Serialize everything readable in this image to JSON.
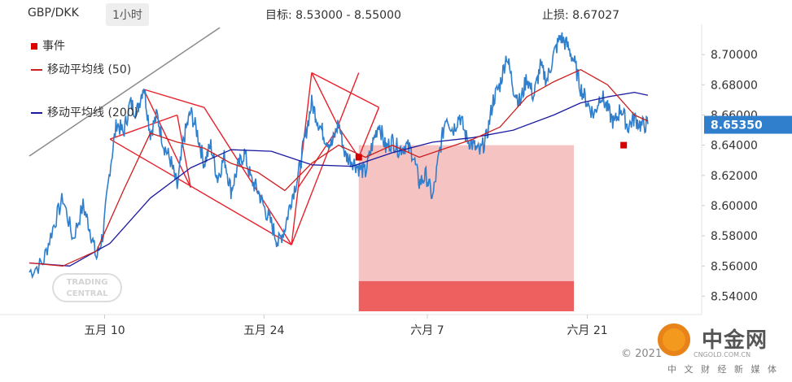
{
  "header": {
    "pair": "GBP/DKK",
    "timeframe": "1小时",
    "target": "目标:  8.53000 - 8.55000",
    "stop": "止损:  8.67027"
  },
  "legend": {
    "event": "事件",
    "ma50": "移动平均线 (50)",
    "ma200": "移动平均线 (200)"
  },
  "colors": {
    "price": "#2f7fcc",
    "ma50": "#cc1f1f",
    "ma200": "#1a1aa0",
    "event": "#d40000",
    "pattern": "#e8202a",
    "target_light": "#f6c3c3",
    "target_dark": "#ee6060",
    "current_tag": "#2f7fcc"
  },
  "watermark": {
    "copyright": "© 2021",
    "brand": "中金网",
    "subtitle": "中 文 财 经 新 媒 体",
    "url": "CNGOLD.COM.CN",
    "tc_line1": "TRADING",
    "tc_line2": "CENTRAL"
  },
  "chart_data": {
    "type": "line",
    "title": "GBP/DKK",
    "timeframe": "1小时",
    "ylim": [
      8.53,
      8.72
    ],
    "y_ticks": [
      "8.54000",
      "8.56000",
      "8.58000",
      "8.60000",
      "8.62000",
      "8.64000",
      "8.66000",
      "8.68000",
      "8.70000"
    ],
    "x_ticks": [
      "五月 10",
      "五月 24",
      "六月 7",
      "六月 21"
    ],
    "current_price": "8.65350",
    "target_zone": [
      8.53,
      8.55
    ],
    "stop_loss": 8.67027,
    "series": [
      {
        "name": "price",
        "points": [
          [
            0,
            8.556
          ],
          [
            0.02,
            8.562
          ],
          [
            0.035,
            8.585
          ],
          [
            0.05,
            8.605
          ],
          [
            0.065,
            8.578
          ],
          [
            0.08,
            8.6
          ],
          [
            0.09,
            8.585
          ],
          [
            0.1,
            8.565
          ],
          [
            0.11,
            8.582
          ],
          [
            0.12,
            8.625
          ],
          [
            0.13,
            8.655
          ],
          [
            0.14,
            8.648
          ],
          [
            0.15,
            8.668
          ],
          [
            0.16,
            8.662
          ],
          [
            0.17,
            8.68
          ],
          [
            0.18,
            8.648
          ],
          [
            0.19,
            8.66
          ],
          [
            0.2,
            8.64
          ],
          [
            0.21,
            8.63
          ],
          [
            0.22,
            8.612
          ],
          [
            0.23,
            8.645
          ],
          [
            0.24,
            8.662
          ],
          [
            0.25,
            8.648
          ],
          [
            0.26,
            8.628
          ],
          [
            0.27,
            8.64
          ],
          [
            0.28,
            8.618
          ],
          [
            0.29,
            8.632
          ],
          [
            0.3,
            8.61
          ],
          [
            0.31,
            8.625
          ],
          [
            0.32,
            8.635
          ],
          [
            0.33,
            8.617
          ],
          [
            0.34,
            8.61
          ],
          [
            0.35,
            8.598
          ],
          [
            0.36,
            8.588
          ],
          [
            0.37,
            8.575
          ],
          [
            0.38,
            8.585
          ],
          [
            0.39,
            8.605
          ],
          [
            0.4,
            8.62
          ],
          [
            0.41,
            8.645
          ],
          [
            0.42,
            8.668
          ],
          [
            0.43,
            8.655
          ],
          [
            0.44,
            8.645
          ],
          [
            0.45,
            8.64
          ],
          [
            0.46,
            8.655
          ],
          [
            0.47,
            8.633
          ],
          [
            0.48,
            8.63
          ],
          [
            0.49,
            8.625
          ],
          [
            0.5,
            8.622
          ],
          [
            0.51,
            8.64
          ],
          [
            0.52,
            8.655
          ],
          [
            0.53,
            8.638
          ],
          [
            0.54,
            8.643
          ],
          [
            0.55,
            8.637
          ],
          [
            0.56,
            8.64
          ],
          [
            0.57,
            8.635
          ],
          [
            0.58,
            8.615
          ],
          [
            0.59,
            8.62
          ],
          [
            0.6,
            8.605
          ],
          [
            0.61,
            8.635
          ],
          [
            0.62,
            8.66
          ],
          [
            0.63,
            8.65
          ],
          [
            0.64,
            8.66
          ],
          [
            0.65,
            8.645
          ],
          [
            0.66,
            8.64
          ],
          [
            0.67,
            8.635
          ],
          [
            0.68,
            8.645
          ],
          [
            0.69,
            8.67
          ],
          [
            0.7,
            8.68
          ],
          [
            0.71,
            8.7
          ],
          [
            0.72,
            8.678
          ],
          [
            0.73,
            8.668
          ],
          [
            0.74,
            8.685
          ],
          [
            0.75,
            8.672
          ],
          [
            0.76,
            8.692
          ],
          [
            0.77,
            8.683
          ],
          [
            0.78,
            8.7
          ],
          [
            0.79,
            8.712
          ],
          [
            0.8,
            8.706
          ],
          [
            0.81,
            8.696
          ],
          [
            0.82,
            8.678
          ],
          [
            0.83,
            8.668
          ],
          [
            0.84,
            8.66
          ],
          [
            0.85,
            8.674
          ],
          [
            0.86,
            8.664
          ],
          [
            0.87,
            8.654
          ],
          [
            0.88,
            8.665
          ],
          [
            0.89,
            8.652
          ],
          [
            0.9,
            8.658
          ],
          [
            0.91,
            8.653
          ],
          [
            0.92,
            8.654
          ]
        ]
      },
      {
        "name": "移动平均线 (50)",
        "points": [
          [
            0,
            8.562
          ],
          [
            0.05,
            8.56
          ],
          [
            0.1,
            8.57
          ],
          [
            0.14,
            8.61
          ],
          [
            0.18,
            8.648
          ],
          [
            0.22,
            8.642
          ],
          [
            0.26,
            8.638
          ],
          [
            0.3,
            8.628
          ],
          [
            0.34,
            8.622
          ],
          [
            0.38,
            8.61
          ],
          [
            0.42,
            8.628
          ],
          [
            0.46,
            8.64
          ],
          [
            0.5,
            8.632
          ],
          [
            0.54,
            8.64
          ],
          [
            0.58,
            8.632
          ],
          [
            0.62,
            8.638
          ],
          [
            0.66,
            8.644
          ],
          [
            0.7,
            8.652
          ],
          [
            0.74,
            8.672
          ],
          [
            0.78,
            8.682
          ],
          [
            0.82,
            8.69
          ],
          [
            0.86,
            8.68
          ],
          [
            0.9,
            8.66
          ],
          [
            0.92,
            8.656
          ]
        ]
      },
      {
        "name": "移动平均线 (200)",
        "points": [
          [
            0,
            8.562
          ],
          [
            0.06,
            8.56
          ],
          [
            0.12,
            8.575
          ],
          [
            0.18,
            8.605
          ],
          [
            0.24,
            8.625
          ],
          [
            0.3,
            8.637
          ],
          [
            0.36,
            8.636
          ],
          [
            0.42,
            8.627
          ],
          [
            0.48,
            8.626
          ],
          [
            0.54,
            8.635
          ],
          [
            0.6,
            8.642
          ],
          [
            0.66,
            8.645
          ],
          [
            0.72,
            8.65
          ],
          [
            0.78,
            8.66
          ],
          [
            0.82,
            8.668
          ],
          [
            0.86,
            8.672
          ],
          [
            0.9,
            8.675
          ],
          [
            0.92,
            8.673
          ]
        ]
      }
    ],
    "events": [
      [
        0.49,
        8.632
      ],
      [
        0.884,
        8.64
      ]
    ]
  }
}
